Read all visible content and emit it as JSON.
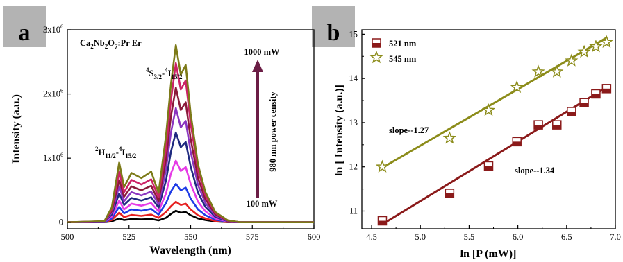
{
  "chart_data": [
    {
      "panel": "a",
      "type": "line",
      "xlabel": "Wavelength (nm)",
      "ylabel": "Intensity (a.u.)",
      "xlim": [
        500,
        600
      ],
      "ylim": [
        -100000,
        3000000
      ],
      "xticks": [
        "500",
        "525",
        "550",
        "575",
        "600"
      ],
      "yticks": [
        {
          "base": "0",
          "exp": ""
        },
        {
          "base": "1x10",
          "exp": "6"
        },
        {
          "base": "2x10",
          "exp": "6"
        },
        {
          "base": "3x10",
          "exp": "6"
        }
      ],
      "sample_label": {
        "p1": "Ca",
        "s1": "2",
        "p2": "Nb",
        "s2": "2",
        "p3": "O",
        "s3": "7",
        "p4": ":Pr Er"
      },
      "peak_labels": {
        "h": {
          "sup1": "2",
          "a": "H",
          "sub1": "11/2",
          "dash": "-",
          "sup2": "4",
          "b": "I",
          "sub2": "15/2"
        },
        "s": {
          "sup1": "4",
          "a": "S",
          "sub1": "3/2",
          "dash": "-",
          "sup2": "4",
          "b": "I",
          "sub2": "15/2"
        }
      },
      "arrow_labels": {
        "top": "1000 mW",
        "bottom": "100 mW",
        "side": "980 nm power censity"
      },
      "arrow_color": "#6b1d45",
      "series": [
        {
          "color": "#000000",
          "values": [
            [
              500,
              0
            ],
            [
              515,
              2000
            ],
            [
              518,
              15000
            ],
            [
              521,
              60000
            ],
            [
              523,
              35000
            ],
            [
              526,
              50000
            ],
            [
              530,
              45000
            ],
            [
              534,
              52000
            ],
            [
              537,
              30000
            ],
            [
              540,
              70000
            ],
            [
              542,
              130000
            ],
            [
              544,
              180000
            ],
            [
              546,
              150000
            ],
            [
              548,
              160000
            ],
            [
              550,
              110000
            ],
            [
              553,
              60000
            ],
            [
              556,
              35000
            ],
            [
              560,
              12000
            ],
            [
              565,
              2000
            ],
            [
              570,
              0
            ],
            [
              600,
              0
            ]
          ]
        },
        {
          "color": "#e62020",
          "values": [
            [
              500,
              0
            ],
            [
              515,
              3000
            ],
            [
              518,
              35000
            ],
            [
              521,
              150000
            ],
            [
              523,
              80000
            ],
            [
              526,
              115000
            ],
            [
              530,
              100000
            ],
            [
              534,
              120000
            ],
            [
              537,
              70000
            ],
            [
              540,
              160000
            ],
            [
              542,
              250000
            ],
            [
              544,
              320000
            ],
            [
              546,
              270000
            ],
            [
              548,
              290000
            ],
            [
              550,
              200000
            ],
            [
              553,
              110000
            ],
            [
              556,
              60000
            ],
            [
              560,
              20000
            ],
            [
              565,
              4000
            ],
            [
              570,
              0
            ],
            [
              600,
              0
            ]
          ]
        },
        {
          "color": "#1e3be6",
          "values": [
            [
              500,
              0
            ],
            [
              515,
              5000
            ],
            [
              518,
              60000
            ],
            [
              521,
              240000
            ],
            [
              523,
              140000
            ],
            [
              526,
              200000
            ],
            [
              530,
              180000
            ],
            [
              534,
              210000
            ],
            [
              537,
              120000
            ],
            [
              540,
              300000
            ],
            [
              542,
              480000
            ],
            [
              544,
              600000
            ],
            [
              546,
              500000
            ],
            [
              548,
              540000
            ],
            [
              550,
              370000
            ],
            [
              553,
              200000
            ],
            [
              556,
              110000
            ],
            [
              560,
              40000
            ],
            [
              565,
              8000
            ],
            [
              570,
              0
            ],
            [
              600,
              0
            ]
          ]
        },
        {
          "color": "#e63be6",
          "values": [
            [
              500,
              0
            ],
            [
              515,
              8000
            ],
            [
              518,
              90000
            ],
            [
              521,
              340000
            ],
            [
              523,
              200000
            ],
            [
              526,
              290000
            ],
            [
              530,
              260000
            ],
            [
              534,
              300000
            ],
            [
              537,
              170000
            ],
            [
              540,
              450000
            ],
            [
              542,
              760000
            ],
            [
              544,
              960000
            ],
            [
              546,
              800000
            ],
            [
              548,
              860000
            ],
            [
              550,
              600000
            ],
            [
              553,
              320000
            ],
            [
              556,
              170000
            ],
            [
              560,
              60000
            ],
            [
              565,
              12000
            ],
            [
              570,
              0
            ],
            [
              600,
              0
            ]
          ]
        },
        {
          "color": "#1f2a80",
          "values": [
            [
              500,
              0
            ],
            [
              515,
              10000
            ],
            [
              518,
              120000
            ],
            [
              521,
              450000
            ],
            [
              523,
              270000
            ],
            [
              526,
              380000
            ],
            [
              530,
              340000
            ],
            [
              534,
              390000
            ],
            [
              537,
              230000
            ],
            [
              540,
              650000
            ],
            [
              542,
              1100000
            ],
            [
              544,
              1400000
            ],
            [
              546,
              1170000
            ],
            [
              548,
              1250000
            ],
            [
              550,
              870000
            ],
            [
              553,
              460000
            ],
            [
              556,
              240000
            ],
            [
              560,
              85000
            ],
            [
              565,
              17000
            ],
            [
              570,
              0
            ],
            [
              600,
              0
            ]
          ]
        },
        {
          "color": "#8a35c0",
          "values": [
            [
              500,
              0
            ],
            [
              515,
              12000
            ],
            [
              518,
              150000
            ],
            [
              521,
              560000
            ],
            [
              523,
              330000
            ],
            [
              526,
              470000
            ],
            [
              530,
              420000
            ],
            [
              534,
              480000
            ],
            [
              537,
              280000
            ],
            [
              540,
              820000
            ],
            [
              542,
              1400000
            ],
            [
              544,
              1780000
            ],
            [
              546,
              1480000
            ],
            [
              548,
              1580000
            ],
            [
              550,
              1100000
            ],
            [
              553,
              580000
            ],
            [
              556,
              300000
            ],
            [
              560,
              105000
            ],
            [
              565,
              21000
            ],
            [
              570,
              0
            ],
            [
              600,
              0
            ]
          ]
        },
        {
          "color": "#8a1a3a",
          "values": [
            [
              500,
              0
            ],
            [
              515,
              14000
            ],
            [
              518,
              175000
            ],
            [
              521,
              660000
            ],
            [
              523,
              400000
            ],
            [
              526,
              560000
            ],
            [
              530,
              500000
            ],
            [
              534,
              570000
            ],
            [
              537,
              330000
            ],
            [
              540,
              980000
            ],
            [
              542,
              1650000
            ],
            [
              544,
              2100000
            ],
            [
              546,
              1750000
            ],
            [
              548,
              1870000
            ],
            [
              550,
              1300000
            ],
            [
              553,
              690000
            ],
            [
              556,
              360000
            ],
            [
              560,
              125000
            ],
            [
              565,
              25000
            ],
            [
              570,
              0
            ],
            [
              600,
              0
            ]
          ]
        },
        {
          "color": "#cc2266",
          "values": [
            [
              500,
              0
            ],
            [
              515,
              16000
            ],
            [
              518,
              200000
            ],
            [
              521,
              790000
            ],
            [
              523,
              470000
            ],
            [
              526,
              660000
            ],
            [
              530,
              590000
            ],
            [
              534,
              670000
            ],
            [
              537,
              390000
            ],
            [
              540,
              1150000
            ],
            [
              542,
              1900000
            ],
            [
              544,
              2480000
            ],
            [
              546,
              2070000
            ],
            [
              548,
              2210000
            ],
            [
              550,
              1540000
            ],
            [
              553,
              810000
            ],
            [
              556,
              420000
            ],
            [
              560,
              145000
            ],
            [
              565,
              29000
            ],
            [
              570,
              0
            ],
            [
              600,
              0
            ]
          ]
        },
        {
          "color": "#7c7a18",
          "values": [
            [
              500,
              0
            ],
            [
              515,
              18000
            ],
            [
              518,
              230000
            ],
            [
              521,
              930000
            ],
            [
              523,
              550000
            ],
            [
              526,
              770000
            ],
            [
              530,
              690000
            ],
            [
              534,
              790000
            ],
            [
              537,
              460000
            ],
            [
              540,
              1350000
            ],
            [
              542,
              2150000
            ],
            [
              544,
              2760000
            ],
            [
              546,
              2300000
            ],
            [
              548,
              2450000
            ],
            [
              550,
              1700000
            ],
            [
              553,
              900000
            ],
            [
              556,
              470000
            ],
            [
              560,
              160000
            ],
            [
              565,
              32000
            ],
            [
              570,
              0
            ],
            [
              600,
              0
            ]
          ]
        }
      ]
    },
    {
      "panel": "b",
      "type": "scatter",
      "xlabel": "ln [P (mW)]",
      "ylabel": "ln [ Intensity (a.u.)]",
      "xlim": [
        4.4,
        7.0
      ],
      "ylim": [
        10.6,
        15.1
      ],
      "xticks": [
        "4.5",
        "5.0",
        "5.5",
        "6.0",
        "6.5",
        "7.0"
      ],
      "yticks": [
        "11",
        "12",
        "13",
        "14",
        "15"
      ],
      "series": [
        {
          "name": "521 nm",
          "marker": "square",
          "color": "#8b1a1a",
          "x": [
            4.61,
            5.3,
            5.7,
            5.99,
            6.21,
            6.4,
            6.55,
            6.68,
            6.8,
            6.91
          ],
          "y": [
            10.78,
            11.4,
            12.02,
            12.57,
            12.95,
            12.95,
            13.25,
            13.45,
            13.65,
            13.77
          ],
          "fit": {
            "x": [
              4.61,
              6.91
            ],
            "y": [
              10.7,
              13.8
            ]
          },
          "slope_label": "slope--1.34"
        },
        {
          "name": "545 nm",
          "marker": "star",
          "color": "#8c8c1a",
          "x": [
            4.61,
            5.3,
            5.7,
            5.99,
            6.21,
            6.4,
            6.55,
            6.68,
            6.8,
            6.91
          ],
          "y": [
            12.0,
            12.65,
            13.28,
            13.8,
            14.15,
            14.15,
            14.4,
            14.6,
            14.72,
            14.82
          ],
          "fit": {
            "x": [
              4.61,
              6.91
            ],
            "y": [
              11.98,
              14.92
            ]
          },
          "slope_label": "slope--1.27"
        }
      ]
    }
  ],
  "panel_labels": {
    "a": "a",
    "b": "b"
  }
}
